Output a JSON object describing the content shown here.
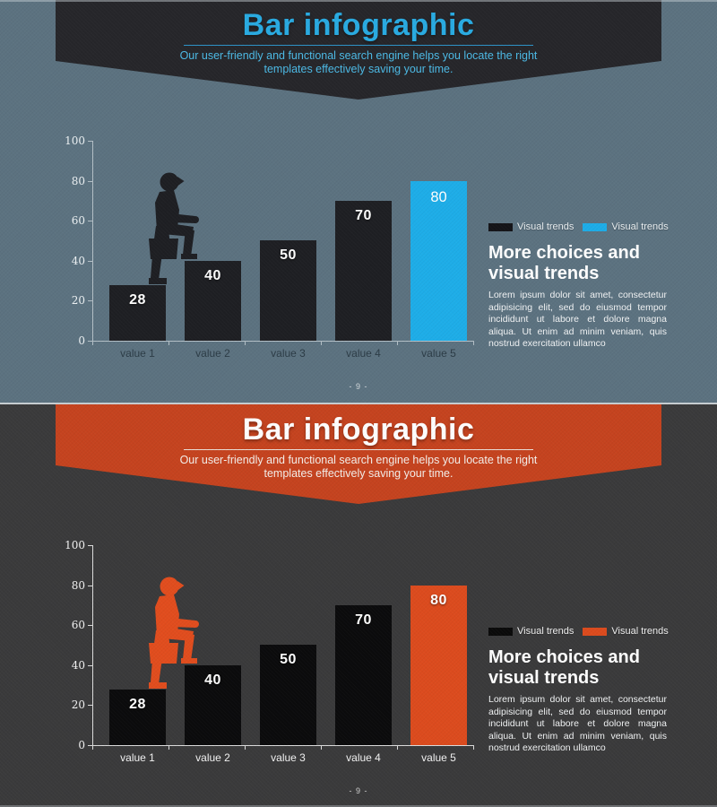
{
  "slides": [
    {
      "name": "bar-infographic-slide-blue",
      "theme": {
        "background": "#5C7280",
        "banner_background": "#26262A",
        "title_color": "#29ABE2",
        "subtitle_color": "#4CBAE6",
        "divider_color": "#2D93C8",
        "bar_color": "#1E1F23",
        "accent_color": "#1EADE8",
        "figure_color": "#1E1F23",
        "axis_color": "#B4C0C7",
        "ytick_label_color": "#ECF1F3",
        "xtick_label_color": "#2C3C46",
        "legend_text_color": "#E9EEF0",
        "page_number_color": "#D4DADD"
      },
      "banner": {
        "title": "Bar infographic",
        "subtitle_lines": [
          "Our user-friendly and functional search engine helps you locate the right",
          "templates effectively saving your time."
        ]
      },
      "chart_data": {
        "type": "bar",
        "categories": [
          "value 1",
          "value 2",
          "value 3",
          "value 4",
          "value 5"
        ],
        "values": [
          28,
          40,
          50,
          70,
          80
        ],
        "bar_labels": [
          "28",
          "40",
          "50",
          "70",
          "80"
        ],
        "highlight_index": 4,
        "ylim": [
          0,
          100
        ],
        "yticks": [
          0,
          20,
          40,
          60,
          80,
          100
        ],
        "xlabel": "",
        "ylabel": "",
        "grid": false,
        "legend_position": "right-of-chart",
        "legend": [
          {
            "label": "Visual trends",
            "color": "#141418"
          },
          {
            "label": "Visual trends",
            "color": "#1EADE8"
          }
        ]
      },
      "content": {
        "heading_lines": [
          "More choices and",
          "visual trends"
        ],
        "body": "Lorem ipsum dolor sit amet, consectetur adipisicing elit, sed do eiusmod tempor incididunt ut labore et dolore magna aliqua. Ut enim ad minim veniam, quis nostrud exercitation ullamco"
      },
      "page_number": "- 9 -"
    },
    {
      "name": "bar-infographic-slide-orange",
      "theme": {
        "background": "#3A3A3B",
        "banner_background": "#C5431F",
        "title_color": "#FFFFFF",
        "subtitle_color": "#F4EEE9",
        "divider_color": "#EADFD8",
        "bar_color": "#0B0B0C",
        "accent_color": "#DC4B1E",
        "figure_color": "#E14D1E",
        "axis_color": "#DCDCDC",
        "ytick_label_color": "#F2F2F2",
        "xtick_label_color": "#F2F2F2",
        "legend_text_color": "#EFEFEF",
        "page_number_color": "#CFCFCF"
      },
      "banner": {
        "title": "Bar infographic",
        "subtitle_lines": [
          "Our user-friendly and functional search engine helps you locate the right",
          "templates effectively saving your time."
        ]
      },
      "chart_data": {
        "type": "bar",
        "categories": [
          "value 1",
          "value 2",
          "value 3",
          "value 4",
          "value 5"
        ],
        "values": [
          28,
          40,
          50,
          70,
          80
        ],
        "bar_labels": [
          "28",
          "40",
          "50",
          "70",
          "80"
        ],
        "highlight_index": 4,
        "ylim": [
          0,
          100
        ],
        "yticks": [
          0,
          20,
          40,
          60,
          80,
          100
        ],
        "xlabel": "",
        "ylabel": "",
        "grid": false,
        "legend_position": "right-of-chart",
        "legend": [
          {
            "label": "Visual trends",
            "color": "#0A0A0A"
          },
          {
            "label": "Visual trends",
            "color": "#DC4B1E"
          }
        ]
      },
      "content": {
        "heading_lines": [
          "More choices and",
          "visual trends"
        ],
        "body": "Lorem ipsum dolor sit amet, consectetur adipisicing elit, sed do eiusmod tempor incididunt ut labore et dolore magna aliqua. Ut enim ad minim veniam, quis nostrud exercitation ullamco"
      },
      "page_number": "- 9 -"
    }
  ]
}
